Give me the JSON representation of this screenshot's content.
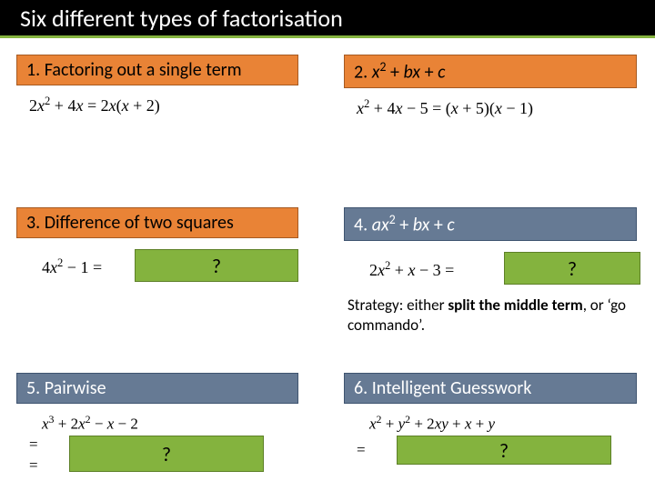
{
  "title": "Six different types of factorisation",
  "panels": {
    "p1": {
      "label": "1. Factoring out a single term",
      "formula_html": "2<span class='italic'>x</span><span class='sup'>2</span> + 4<span class='italic'>x</span> = 2<span class='italic'>x</span>(<span class='italic'>x</span> + 2)"
    },
    "p2": {
      "label_html": "2. <span class='italic'>x</span><span class='sup'>2</span> + <span class='italic'>bx</span> + <span class='italic'>c</span>",
      "formula_html": "<span class='italic'>x</span><span class='sup'>2</span> + 4<span class='italic'>x</span> − 5 = (<span class='italic'>x</span> + 5)(<span class='italic'>x</span> − 1)"
    },
    "p3": {
      "label": "3. Difference of two squares",
      "formula_html": "4<span class='italic'>x</span><span class='sup'>2</span> − 1 =",
      "q": "?"
    },
    "p4": {
      "label_html": "4. <span class='italic'>ax</span><span class='sup'>2</span> + <span class='italic'>bx</span> + <span class='italic'>c</span>",
      "formula_html": "2<span class='italic'>x</span><span class='sup'>2</span> + <span class='italic'>x</span> − 3 =",
      "q": "?",
      "strategy_html": "Strategy: either <span class='bold'>split the middle term</span>, or ‘go commando’."
    },
    "p5": {
      "label": "5. Pairwise",
      "formula_html": "<span class='italic'>x</span><span class='sup'>3</span> + 2<span class='italic'>x</span><span class='sup'>2</span> − <span class='italic'>x</span> − 2",
      "q": "?"
    },
    "p6": {
      "label": "6. Intelligent Guesswork",
      "formula_html": "<span class='italic'>x</span><span class='sup'>2</span> + <span class='italic'>y</span><span class='sup'>2</span> + 2<span class='italic'>xy</span> + <span class='italic'>x</span> + <span class='italic'>y</span>",
      "q": "?"
    }
  },
  "colors": {
    "orange": "#e98336",
    "orange_border": "#a65a22",
    "slate": "#667a94",
    "slate_border": "#3f5470",
    "green": "#84b33e",
    "green_border": "#5d8027",
    "black": "#000000",
    "white": "#ffffff"
  }
}
